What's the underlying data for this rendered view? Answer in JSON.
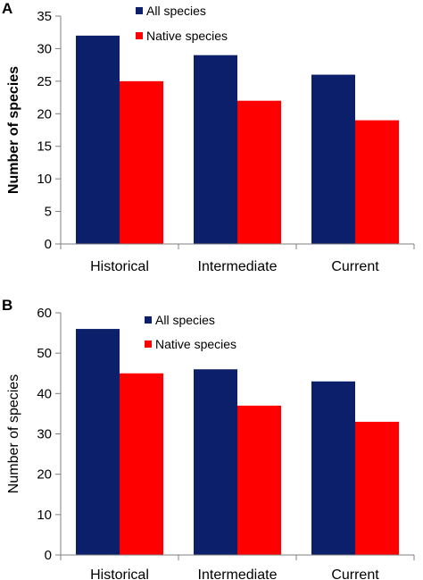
{
  "chart_data": [
    {
      "type": "bar",
      "panel_label": "A",
      "categories": [
        "Historical",
        "Intermediate",
        "Current"
      ],
      "series": [
        {
          "name": "All species",
          "values": [
            32,
            29,
            26
          ],
          "color": "#0b1f6b"
        },
        {
          "name": "Native species",
          "values": [
            25,
            22,
            19
          ],
          "color": "#ff0000"
        }
      ],
      "ylabel": "Number of species",
      "xlabel": "",
      "ylim": [
        0,
        35
      ],
      "yticks": [
        0,
        5,
        10,
        15,
        20,
        25,
        30,
        35
      ],
      "grid": false,
      "legend_position": "top-right"
    },
    {
      "type": "bar",
      "panel_label": "B",
      "categories": [
        "Historical",
        "Intermediate",
        "Current"
      ],
      "series": [
        {
          "name": "All species",
          "values": [
            56,
            46,
            43
          ],
          "color": "#0b1f6b"
        },
        {
          "name": "Native species",
          "values": [
            45,
            37,
            33
          ],
          "color": "#ff0000"
        }
      ],
      "ylabel": "Number of species",
      "xlabel": "",
      "ylim": [
        0,
        60
      ],
      "yticks": [
        0,
        10,
        20,
        30,
        40,
        50,
        60
      ],
      "grid": false,
      "legend_position": "top-right"
    }
  ]
}
